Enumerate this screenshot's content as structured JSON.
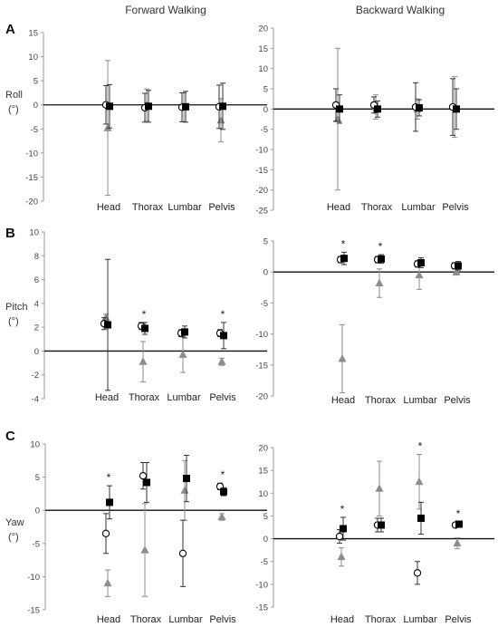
{
  "headers": {
    "forward": "Forward Walking",
    "backward": "Backward Walking"
  },
  "row_labels": [
    {
      "letter": "A",
      "name": "Roll",
      "unit": "(°)"
    },
    {
      "letter": "B",
      "name": "Pitch",
      "unit": "(°)"
    },
    {
      "letter": "C",
      "name": "Yaw",
      "unit": "(°)"
    }
  ],
  "chart_data": [
    {
      "id": "roll-forward",
      "type": "scatter",
      "categories": [
        "Head",
        "Thorax",
        "Lumbar",
        "Pelvis"
      ],
      "ylim": [
        -20,
        15
      ],
      "yticks": [
        15,
        10,
        5,
        0,
        -5,
        -10,
        -15,
        -20
      ],
      "series": [
        {
          "marker": "square",
          "color": "#000000",
          "values": [
            -0.3,
            -0.3,
            -0.4,
            -0.3
          ],
          "sd": [
            4.5,
            3.3,
            3.2,
            4.8
          ]
        },
        {
          "marker": "circle",
          "color": "#000000",
          "values": [
            0.0,
            -0.6,
            -0.5,
            -0.4
          ],
          "sd": [
            4.0,
            3.0,
            3.0,
            4.5
          ]
        },
        {
          "marker": "triangle",
          "color": "#8c8c8c",
          "values": [
            -4.8,
            0.0,
            -0.5,
            -3.2
          ],
          "sd": [
            14.0,
            3.3,
            3.0,
            4.5
          ]
        }
      ],
      "significant": []
    },
    {
      "id": "roll-backward",
      "type": "scatter",
      "categories": [
        "Head",
        "Thorax",
        "Lumbar",
        "Pelvis"
      ],
      "ylim": [
        -25,
        20
      ],
      "yticks": [
        20,
        15,
        10,
        5,
        0,
        -5,
        -10,
        -15,
        -20,
        -25
      ],
      "series": [
        {
          "marker": "square",
          "color": "#000000",
          "values": [
            0.0,
            0.0,
            0.3,
            0.0
          ],
          "sd": [
            3.5,
            2.0,
            2.0,
            5.0
          ]
        },
        {
          "marker": "circle",
          "color": "#000000",
          "values": [
            1.0,
            1.0,
            0.5,
            0.5
          ],
          "sd": [
            4.0,
            2.0,
            6.0,
            7.0
          ]
        },
        {
          "marker": "triangle",
          "color": "#8c8c8c",
          "values": [
            -2.5,
            0.5,
            0.0,
            0.5
          ],
          "sd": [
            17.5,
            3.0,
            2.5,
            7.5
          ]
        }
      ],
      "significant": []
    },
    {
      "id": "pitch-forward",
      "type": "scatter",
      "categories": [
        "Head",
        "Thorax",
        "Lumbar",
        "Pelvis"
      ],
      "ylim": [
        -4,
        10
      ],
      "yticks": [
        10,
        8,
        6,
        4,
        2,
        0,
        -2,
        -4
      ],
      "series": [
        {
          "marker": "square",
          "color": "#000000",
          "values": [
            2.2,
            1.9,
            1.6,
            1.3
          ],
          "sd": [
            5.5,
            0.5,
            0.5,
            1.1
          ]
        },
        {
          "marker": "circle",
          "color": "#000000",
          "values": [
            2.3,
            2.1,
            1.5,
            1.5
          ],
          "sd": [
            0.5,
            0.3,
            0.3,
            0.3
          ]
        },
        {
          "marker": "triangle",
          "color": "#8c8c8c",
          "values": [
            2.8,
            -0.9,
            -0.3,
            -0.9
          ],
          "sd": [
            0.3,
            1.7,
            1.5,
            0.3
          ]
        }
      ],
      "significant": [
        "Thorax",
        "Pelvis"
      ]
    },
    {
      "id": "pitch-backward",
      "type": "scatter",
      "categories": [
        "Head",
        "Thorax",
        "Lumbar",
        "Pelvis"
      ],
      "ylim": [
        -20,
        5
      ],
      "yticks": [
        5,
        0,
        -5,
        -10,
        -15,
        -20
      ],
      "series": [
        {
          "marker": "square",
          "color": "#000000",
          "values": [
            2.2,
            2.1,
            1.5,
            1.0
          ],
          "sd": [
            1.0,
            0.7,
            0.8,
            0.7
          ]
        },
        {
          "marker": "circle",
          "color": "#000000",
          "values": [
            2.0,
            2.0,
            1.3,
            1.0
          ],
          "sd": [
            0.5,
            0.5,
            0.5,
            0.5
          ]
        },
        {
          "marker": "triangle",
          "color": "#8c8c8c",
          "values": [
            -14.0,
            -1.8,
            -0.5,
            0.0
          ],
          "sd": [
            5.5,
            2.3,
            2.3,
            0.5
          ]
        }
      ],
      "significant": [
        "Head",
        "Thorax"
      ]
    },
    {
      "id": "yaw-forward",
      "type": "scatter",
      "categories": [
        "Head",
        "Thorax",
        "Lumbar",
        "Pelvis"
      ],
      "ylim": [
        -15,
        10
      ],
      "yticks": [
        10,
        5,
        0,
        -5,
        -10,
        -15
      ],
      "series": [
        {
          "marker": "square",
          "color": "#000000",
          "values": [
            1.2,
            4.2,
            4.8,
            2.8
          ],
          "sd": [
            2.5,
            3.0,
            3.5,
            0.6
          ]
        },
        {
          "marker": "circle",
          "color": "#000000",
          "values": [
            -3.5,
            5.2,
            -6.5,
            3.6
          ],
          "sd": [
            3.0,
            2.0,
            5.0,
            0.5
          ]
        },
        {
          "marker": "triangle",
          "color": "#8c8c8c",
          "values": [
            -11.0,
            -6.0,
            3.0,
            -1.0
          ],
          "sd": [
            2.0,
            7.0,
            4.5,
            0.5
          ]
        }
      ],
      "significant": [
        "Head",
        "Pelvis"
      ]
    },
    {
      "id": "yaw-backward",
      "type": "scatter",
      "categories": [
        "Head",
        "Thorax",
        "Lumbar",
        "Pelvis"
      ],
      "ylim": [
        -15,
        20
      ],
      "yticks": [
        20,
        15,
        10,
        5,
        0,
        -5,
        -10,
        -15
      ],
      "series": [
        {
          "marker": "square",
          "color": "#000000",
          "values": [
            2.2,
            3.0,
            4.5,
            3.2
          ],
          "sd": [
            2.5,
            1.5,
            3.5,
            0.5
          ]
        },
        {
          "marker": "circle",
          "color": "#000000",
          "values": [
            0.5,
            3.0,
            -7.5,
            3.0
          ],
          "sd": [
            1.5,
            1.5,
            2.5,
            0.5
          ]
        },
        {
          "marker": "triangle",
          "color": "#8c8c8c",
          "values": [
            -4.0,
            11.0,
            12.5,
            -1.0
          ],
          "sd": [
            2.0,
            6.0,
            6.0,
            1.2
          ]
        }
      ],
      "significant": [
        "Head",
        "Lumbar",
        "Pelvis"
      ]
    }
  ]
}
